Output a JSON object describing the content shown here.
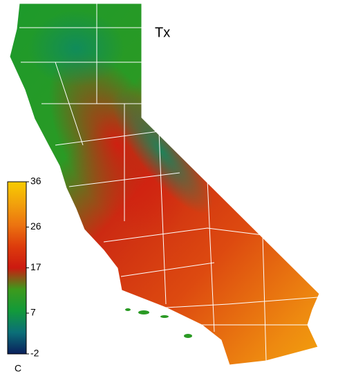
{
  "map": {
    "title": "Tx",
    "colorbar": {
      "lim": [
        -2,
        36
      ],
      "ticks": [
        -2,
        7,
        17,
        26,
        36
      ],
      "unit": "C",
      "colors": [
        "#0a1f5c",
        "#0b6f78",
        "#129a3a",
        "#3d9a1c",
        "#cc1a10",
        "#dd3c0c",
        "#ec7410",
        "#f2a20c",
        "#f8cc00"
      ]
    }
  }
}
